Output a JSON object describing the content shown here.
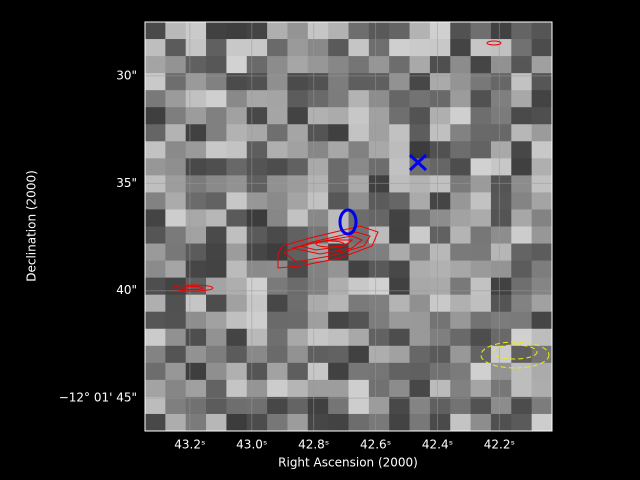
{
  "chart_data": {
    "type": "image",
    "xlabel": "Right Ascension (2000)",
    "ylabel": "Declination (2000)",
    "xlim": [
      43.345,
      42.03
    ],
    "ylim": [
      46.53,
      27.49
    ],
    "xticks": [
      {
        "value": 43.2,
        "label": "43.2ˢ"
      },
      {
        "value": 43.0,
        "label": "43.0ˢ"
      },
      {
        "value": 42.8,
        "label": "42.8ˢ"
      },
      {
        "value": 42.6,
        "label": "42.6ˢ"
      },
      {
        "value": 42.4,
        "label": "42.4ˢ"
      },
      {
        "value": 42.2,
        "label": "42.2ˢ"
      }
    ],
    "yticks": [
      {
        "value": 30,
        "label": "30\""
      },
      {
        "value": 35,
        "label": "35\""
      },
      {
        "value": 40,
        "label": "40\""
      },
      {
        "value": 45,
        "label": "−12° 01' 45\""
      }
    ],
    "grid": true
  }
}
